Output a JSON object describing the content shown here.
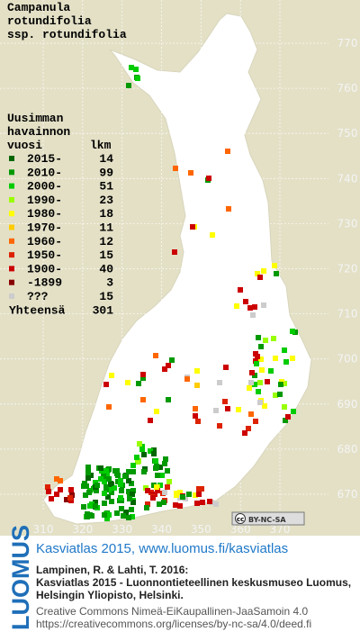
{
  "title": [
    "Campanula",
    "rotundifolia",
    "ssp. rotundifolia"
  ],
  "legend": {
    "heading": [
      "Uusimman",
      "havainnon"
    ],
    "col_year": "vuosi",
    "col_count": "lkm",
    "items": [
      {
        "label": "2015-",
        "count": 14,
        "color": "#006600"
      },
      {
        "label": "2010-",
        "count": 99,
        "color": "#009900"
      },
      {
        "label": "2000-",
        "count": 51,
        "color": "#00cc00"
      },
      {
        "label": "1990-",
        "count": 23,
        "color": "#99ff00"
      },
      {
        "label": "1980-",
        "count": 18,
        "color": "#ffff00"
      },
      {
        "label": "1970-",
        "count": 11,
        "color": "#ffcc00"
      },
      {
        "label": "1960-",
        "count": 12,
        "color": "#ff6600"
      },
      {
        "label": "1950-",
        "count": 15,
        "color": "#dd2200"
      },
      {
        "label": "1900-",
        "count": 40,
        "color": "#cc0000"
      },
      {
        "label": "-1899",
        "count": 3,
        "color": "#880000"
      },
      {
        "label": "???",
        "count": 15,
        "color": "#cccccc"
      }
    ],
    "total_label": "Yhteensä",
    "total": 301
  },
  "grid": {
    "x_ticks": [
      310,
      320,
      330,
      340,
      350,
      360,
      370
    ],
    "y_ticks": [
      670,
      680,
      690,
      700,
      710,
      720,
      730,
      740,
      750,
      760,
      770
    ]
  },
  "license_badge": {
    "icon": "cc",
    "text": "BY-NC-SA"
  },
  "footer": {
    "logo": "LUOMUS",
    "headline": "Kasviatlas 2015, www.luomus.fi/kasviatlas",
    "citation": [
      "Lampinen, R. & Lahti, T. 2016:",
      "Kasviatlas 2015 - Luonnontieteellinen keskusmuseo Luomus,",
      "Helsingin Yliopisto, Helsinki."
    ],
    "license": [
      "Creative Commons Nimeä-EiKaupallinen-JaaSamoin 4.0",
      "https://creativecommons.org/licenses/by-nc-sa/4.0/deed.fi"
    ]
  }
}
